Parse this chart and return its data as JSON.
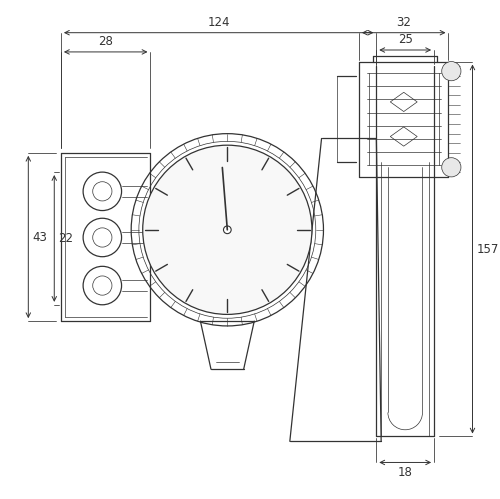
{
  "fig_width": 5.0,
  "fig_height": 4.99,
  "dpi": 100,
  "bg_color": "#ffffff",
  "line_color": "#333333",
  "dim_color": "#333333",
  "lw": 0.9,
  "lw_thin": 0.5,
  "lw_thick": 1.2,
  "dim_lw": 0.7
}
